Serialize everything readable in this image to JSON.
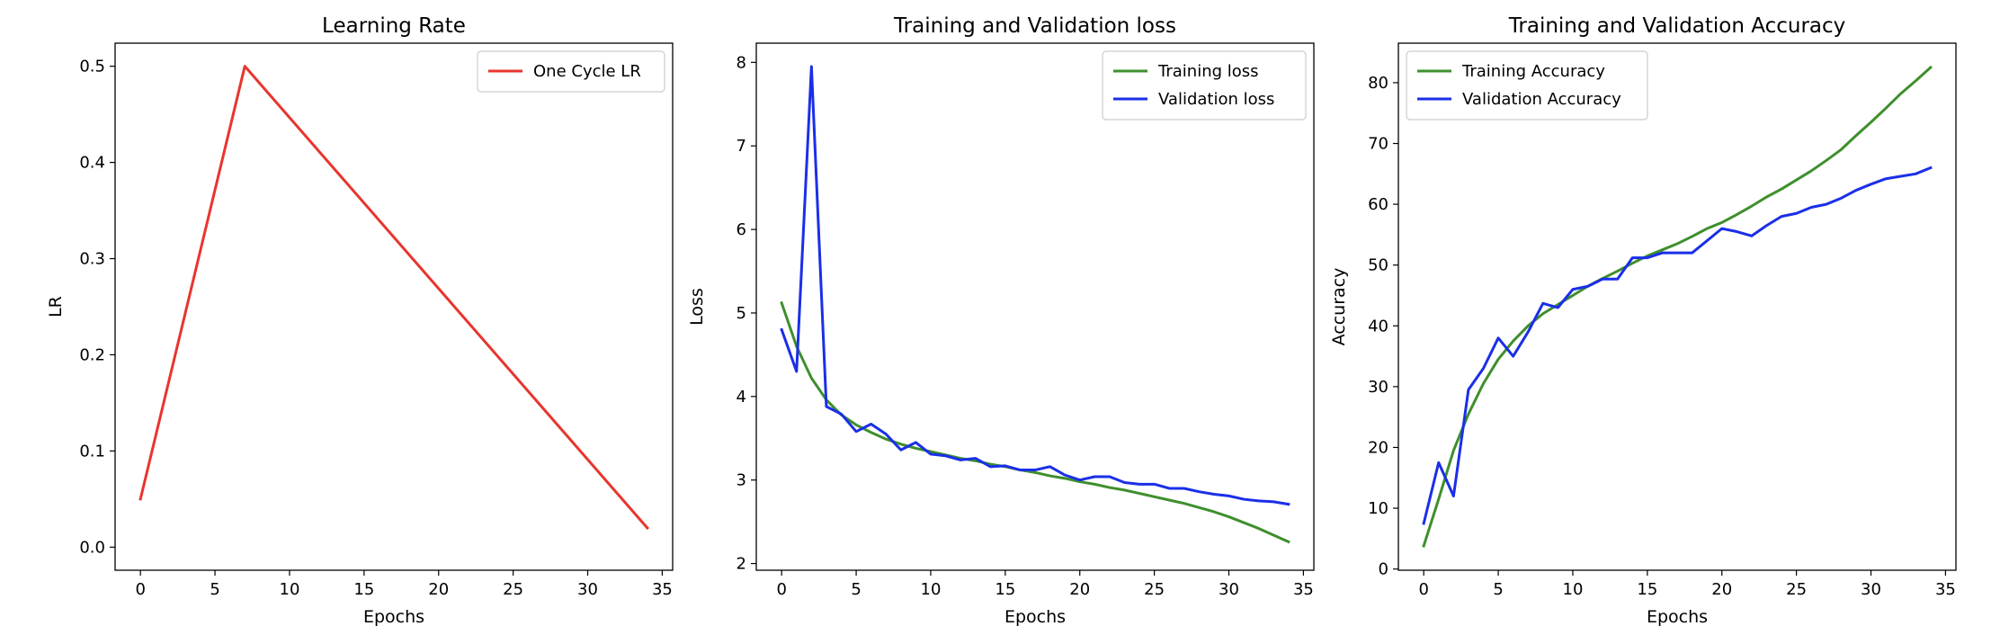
{
  "chart_data": [
    {
      "type": "line",
      "title": "Learning Rate",
      "xlabel": "Epochs",
      "ylabel": "LR",
      "xlim": [
        -1.7,
        35.7
      ],
      "ylim": [
        -0.024,
        0.524
      ],
      "xticks": [
        0,
        5,
        10,
        15,
        20,
        25,
        30,
        35
      ],
      "yticks": [
        0.0,
        0.1,
        0.2,
        0.3,
        0.4,
        0.5
      ],
      "ytick_labels": [
        "0.0",
        "0.1",
        "0.2",
        "0.3",
        "0.4",
        "0.5"
      ],
      "grid": false,
      "legend_position": "upper right",
      "series": [
        {
          "name": "One Cycle LR",
          "color": "#e8352e",
          "x": [
            0,
            7,
            34
          ],
          "y": [
            0.05,
            0.5,
            0.02
          ]
        }
      ]
    },
    {
      "type": "line",
      "title": "Training and Validation loss",
      "xlabel": "Epochs",
      "ylabel": "Loss",
      "xlim": [
        -1.7,
        35.7
      ],
      "ylim": [
        1.92,
        8.23
      ],
      "xticks": [
        0,
        5,
        10,
        15,
        20,
        25,
        30,
        35
      ],
      "yticks": [
        2,
        3,
        4,
        5,
        6,
        7,
        8
      ],
      "ytick_labels": [
        "2",
        "3",
        "4",
        "5",
        "6",
        "7",
        "8"
      ],
      "grid": false,
      "legend_position": "upper right",
      "series": [
        {
          "name": "Training loss",
          "color": "#3e8f2c",
          "x": [
            0,
            1,
            2,
            3,
            4,
            5,
            6,
            7,
            8,
            9,
            10,
            11,
            12,
            13,
            14,
            15,
            16,
            17,
            18,
            19,
            20,
            21,
            22,
            23,
            24,
            25,
            26,
            27,
            28,
            29,
            30,
            31,
            32,
            33,
            34
          ],
          "y": [
            5.12,
            4.6,
            4.22,
            3.96,
            3.78,
            3.66,
            3.57,
            3.49,
            3.43,
            3.38,
            3.34,
            3.3,
            3.26,
            3.23,
            3.19,
            3.16,
            3.12,
            3.09,
            3.05,
            3.02,
            2.98,
            2.95,
            2.91,
            2.88,
            2.84,
            2.8,
            2.76,
            2.72,
            2.67,
            2.62,
            2.56,
            2.49,
            2.42,
            2.34,
            2.26
          ]
        },
        {
          "name": "Validation loss",
          "color": "#1a2fe8",
          "x": [
            0,
            1,
            2,
            3,
            4,
            5,
            6,
            7,
            8,
            9,
            10,
            11,
            12,
            13,
            14,
            15,
            16,
            17,
            18,
            19,
            20,
            21,
            22,
            23,
            24,
            25,
            26,
            27,
            28,
            29,
            30,
            31,
            32,
            33,
            34
          ],
          "y": [
            4.8,
            4.3,
            7.95,
            3.88,
            3.79,
            3.58,
            3.67,
            3.55,
            3.36,
            3.45,
            3.31,
            3.29,
            3.24,
            3.26,
            3.16,
            3.17,
            3.12,
            3.12,
            3.16,
            3.06,
            3.0,
            3.04,
            3.04,
            2.97,
            2.95,
            2.95,
            2.9,
            2.9,
            2.86,
            2.83,
            2.81,
            2.77,
            2.75,
            2.74,
            2.71
          ]
        }
      ]
    },
    {
      "type": "line",
      "title": "Training and Validation Accuracy",
      "xlabel": "Epochs",
      "ylabel": "Accuracy",
      "xlim": [
        -1.7,
        35.7
      ],
      "ylim": [
        -0.2,
        86.5
      ],
      "xticks": [
        0,
        5,
        10,
        15,
        20,
        25,
        30,
        35
      ],
      "yticks": [
        0,
        10,
        20,
        30,
        40,
        50,
        60,
        70,
        80
      ],
      "ytick_labels": [
        "0",
        "10",
        "20",
        "30",
        "40",
        "50",
        "60",
        "70",
        "80"
      ],
      "grid": false,
      "legend_position": "upper left",
      "series": [
        {
          "name": "Training Accuracy",
          "color": "#3e8f2c",
          "x": [
            0,
            1,
            2,
            3,
            4,
            5,
            6,
            7,
            8,
            9,
            10,
            11,
            12,
            13,
            14,
            15,
            16,
            17,
            18,
            19,
            20,
            21,
            22,
            23,
            24,
            25,
            26,
            27,
            28,
            29,
            30,
            31,
            32,
            33,
            34
          ],
          "y": [
            3.8,
            11.5,
            19.5,
            25.5,
            30.5,
            34.5,
            37.5,
            40.0,
            42.0,
            43.5,
            45.0,
            46.5,
            47.8,
            49.0,
            50.3,
            51.5,
            52.5,
            53.5,
            54.7,
            56.0,
            57.0,
            58.3,
            59.7,
            61.2,
            62.5,
            64.0,
            65.5,
            67.2,
            69.0,
            71.3,
            73.5,
            75.8,
            78.2,
            80.3,
            82.5
          ]
        },
        {
          "name": "Validation Accuracy",
          "color": "#1a2fe8",
          "x": [
            0,
            1,
            2,
            3,
            4,
            5,
            6,
            7,
            8,
            9,
            10,
            11,
            12,
            13,
            14,
            15,
            16,
            17,
            18,
            19,
            20,
            21,
            22,
            23,
            24,
            25,
            26,
            27,
            28,
            29,
            30,
            31,
            32,
            33,
            34
          ],
          "y": [
            7.5,
            17.5,
            12.0,
            29.5,
            33.0,
            38.0,
            35.0,
            39.0,
            43.7,
            43.0,
            46.0,
            46.5,
            47.7,
            47.7,
            51.2,
            51.2,
            52.0,
            52.0,
            52.0,
            54.0,
            56.0,
            55.5,
            54.8,
            56.5,
            58.0,
            58.5,
            59.5,
            60.0,
            61.0,
            62.3,
            63.3,
            64.2,
            64.6,
            65.0,
            66.0
          ]
        }
      ]
    }
  ]
}
